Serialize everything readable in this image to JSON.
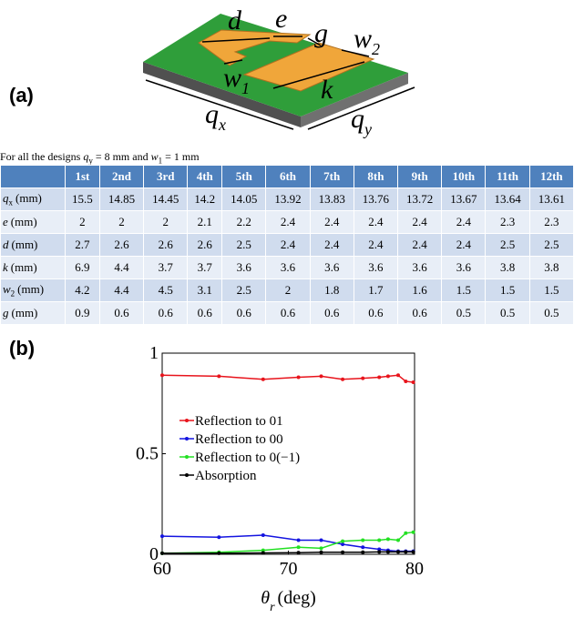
{
  "figure_a": {
    "panel_label": "(a)",
    "labels": {
      "d": "d",
      "e": "e",
      "g": "g",
      "w2": [
        "w",
        "2"
      ],
      "w1": [
        "w",
        "1"
      ],
      "k": "k",
      "qx": [
        "q",
        "x"
      ],
      "qy": [
        "q",
        "y"
      ]
    }
  },
  "caption": [
    "For all the designs ",
    "q",
    "y",
    " = 8 mm and ",
    "w",
    "1",
    " = 1 mm"
  ],
  "table": {
    "column_headers": [
      "1st",
      "2nd",
      "3rd",
      "4th",
      "5th",
      "6th",
      "7th",
      "8th",
      "9th",
      "10th",
      "11th",
      "12th"
    ],
    "rows": [
      {
        "label": [
          "q",
          "x",
          "(mm)"
        ],
        "values": [
          15.5,
          14.85,
          14.45,
          14.2,
          14.05,
          13.92,
          13.83,
          13.76,
          13.72,
          13.67,
          13.64,
          13.61
        ]
      },
      {
        "label": [
          "e",
          "(mm)"
        ],
        "values": [
          2,
          2,
          2,
          2.1,
          2.2,
          2.4,
          2.4,
          2.4,
          2.4,
          2.4,
          2.3,
          2.3
        ]
      },
      {
        "label": [
          "d",
          "(mm)"
        ],
        "values": [
          2.7,
          2.6,
          2.6,
          2.6,
          2.5,
          2.4,
          2.4,
          2.4,
          2.4,
          2.4,
          2.5,
          2.5
        ]
      },
      {
        "label": [
          "k",
          "(mm)"
        ],
        "values": [
          6.9,
          4.4,
          3.7,
          3.7,
          3.6,
          3.6,
          3.6,
          3.6,
          3.6,
          3.6,
          3.8,
          3.8
        ]
      },
      {
        "label": [
          "w",
          "2",
          "(mm)"
        ],
        "values": [
          4.2,
          4.4,
          4.5,
          3.1,
          2.5,
          2,
          1.8,
          1.7,
          1.6,
          1.5,
          1.5,
          1.5
        ]
      },
      {
        "label": [
          "g",
          "(mm)"
        ],
        "values": [
          0.9,
          0.6,
          0.6,
          0.6,
          0.6,
          0.6,
          0.6,
          0.6,
          0.6,
          0.5,
          0.5,
          0.5
        ]
      }
    ]
  },
  "panel_b_label": "(b)",
  "chart_data": {
    "type": "line",
    "x_label": {
      "symbol": "θ",
      "sub": "r",
      "unit": "(deg)"
    },
    "x": [
      60,
      64.5,
      68,
      70.8,
      72.6,
      74.3,
      75.9,
      77.2,
      77.9,
      78.7,
      79.3,
      79.9
    ],
    "series": [
      {
        "name": "Reflection to 01",
        "color": "#e8141c",
        "values": [
          0.89,
          0.885,
          0.87,
          0.88,
          0.885,
          0.87,
          0.875,
          0.88,
          0.885,
          0.89,
          0.86,
          0.855
        ]
      },
      {
        "name": "Reflection to 00",
        "color": "#1414e0",
        "values": [
          0.09,
          0.085,
          0.095,
          0.07,
          0.07,
          0.05,
          0.035,
          0.025,
          0.02,
          0.015,
          0.015,
          0.015
        ]
      },
      {
        "name": "Reflection to 0(−1)",
        "color": "#22e022",
        "values": [
          0.005,
          0.01,
          0.02,
          0.035,
          0.03,
          0.065,
          0.07,
          0.07,
          0.075,
          0.07,
          0.105,
          0.11
        ]
      },
      {
        "name": "Absorption",
        "color": "#000000",
        "values": [
          0.005,
          0.005,
          0.007,
          0.008,
          0.01,
          0.01,
          0.01,
          0.012,
          0.012,
          0.012,
          0.012,
          0.012
        ]
      }
    ],
    "xlim": [
      60,
      80
    ],
    "xticks": [
      60,
      70,
      80
    ],
    "ylim": [
      0,
      1
    ],
    "yticks": [
      0,
      0.5,
      1
    ]
  }
}
